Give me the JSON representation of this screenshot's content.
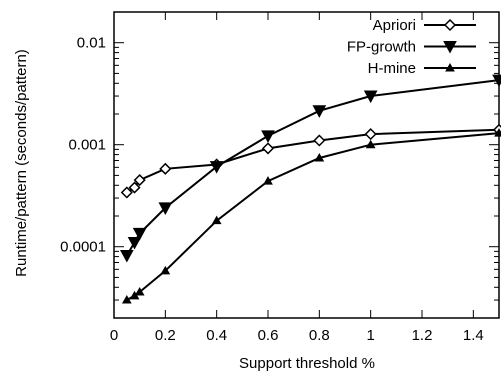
{
  "chart_data": {
    "type": "line",
    "title": "",
    "xlabel": "Support threshold %",
    "ylabel": "Runtime/pattern (seconds/pattern)",
    "xlim": [
      0,
      1.5
    ],
    "ylim": [
      2e-05,
      0.02
    ],
    "yscale": "log",
    "grid": false,
    "legend_position": "top-right",
    "x_ticks": [
      {
        "value": 0,
        "label": "0"
      },
      {
        "value": 0.2,
        "label": "0.2"
      },
      {
        "value": 0.4,
        "label": "0.4"
      },
      {
        "value": 0.6,
        "label": "0.6"
      },
      {
        "value": 0.8,
        "label": "0.8"
      },
      {
        "value": 1.0,
        "label": "1"
      },
      {
        "value": 1.2,
        "label": "1.2"
      },
      {
        "value": 1.4,
        "label": "1.4"
      }
    ],
    "y_ticks": [
      {
        "value": 0.01,
        "label": "0.01"
      },
      {
        "value": 0.001,
        "label": "0.001"
      },
      {
        "value": 0.0001,
        "label": "0.0001"
      }
    ],
    "series": [
      {
        "name": "Apriori",
        "marker": "diamond",
        "x": [
          0.05,
          0.08,
          0.1,
          0.2,
          0.4,
          0.6,
          0.8,
          1.0,
          1.5
        ],
        "y": [
          0.00034,
          0.00038,
          0.00045,
          0.00058,
          0.00064,
          0.00092,
          0.0011,
          0.00127,
          0.0014
        ]
      },
      {
        "name": "FP-growth",
        "marker": "triangle-down",
        "x": [
          0.05,
          0.08,
          0.1,
          0.2,
          0.4,
          0.6,
          0.8,
          1.0,
          1.5
        ],
        "y": [
          8.2e-05,
          0.00011,
          0.000135,
          0.00024,
          0.00061,
          0.00122,
          0.00215,
          0.003,
          0.0043
        ]
      },
      {
        "name": "H-mine",
        "marker": "triangle-up",
        "x": [
          0.05,
          0.08,
          0.1,
          0.2,
          0.4,
          0.6,
          0.8,
          1.0,
          1.5
        ],
        "y": [
          3e-05,
          3.3e-05,
          3.6e-05,
          5.8e-05,
          0.00018,
          0.00044,
          0.00074,
          0.001,
          0.0013
        ]
      }
    ]
  },
  "colors": {
    "line": "#000000",
    "background": "#ffffff"
  }
}
